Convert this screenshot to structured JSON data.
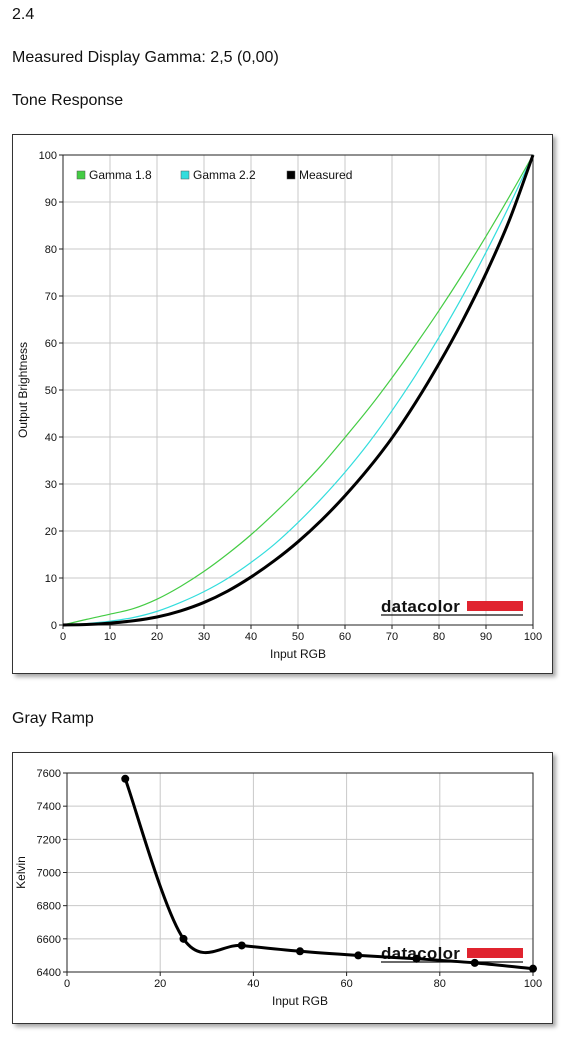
{
  "header": {
    "section_number": "2.4",
    "gamma_line": "Measured Display Gamma: 2,5 (0,00)"
  },
  "sections": {
    "tone_title": "Tone Response",
    "gray_title": "Gray Ramp"
  },
  "brand": {
    "logo_text": "datacolor",
    "logo_bar_color": "#e0242f"
  },
  "chart_data": [
    {
      "type": "line",
      "xlabel": "Input RGB",
      "ylabel": "Output Brightness",
      "xlim": [
        0,
        100
      ],
      "ylim": [
        0,
        100
      ],
      "xticks": [
        0,
        10,
        20,
        30,
        40,
        50,
        60,
        70,
        80,
        90,
        100
      ],
      "yticks": [
        0,
        10,
        20,
        30,
        40,
        50,
        60,
        70,
        80,
        90,
        100
      ],
      "grid": true,
      "legend_position": "top-left",
      "series": [
        {
          "name": "Gamma 1.8",
          "color": "#44cc44",
          "x": [
            0,
            5,
            10,
            15,
            20,
            25,
            30,
            35,
            40,
            45,
            50,
            55,
            60,
            65,
            70,
            75,
            80,
            85,
            90,
            95,
            100
          ],
          "y": [
            0,
            1.2,
            2.3,
            3.5,
            5.5,
            8.2,
            11.4,
            15.1,
            19.2,
            23.8,
            28.7,
            34.0,
            39.9,
            46.0,
            52.6,
            59.6,
            66.9,
            74.6,
            82.7,
            91.2,
            100
          ]
        },
        {
          "name": "Gamma 2.2",
          "color": "#33dddd",
          "x": [
            0,
            5,
            10,
            15,
            20,
            25,
            30,
            35,
            40,
            45,
            50,
            55,
            60,
            65,
            70,
            75,
            80,
            85,
            90,
            95,
            100
          ],
          "y": [
            0,
            0.3,
            0.8,
            1.6,
            2.9,
            4.8,
            7.1,
            9.9,
            13.3,
            17.2,
            21.8,
            26.9,
            32.5,
            38.7,
            45.6,
            53.1,
            61.2,
            69.9,
            79.3,
            89.3,
            100
          ]
        },
        {
          "name": "Measured",
          "color": "#000000",
          "x": [
            0,
            5,
            10,
            15,
            20,
            25,
            30,
            35,
            40,
            45,
            50,
            55,
            60,
            65,
            70,
            75,
            80,
            85,
            90,
            95,
            100
          ],
          "y": [
            0,
            0.1,
            0.4,
            0.9,
            1.7,
            3.0,
            4.8,
            7.2,
            10.2,
            13.7,
            17.7,
            22.3,
            27.5,
            33.3,
            39.8,
            47.3,
            55.6,
            64.7,
            74.8,
            86.2,
            100
          ]
        }
      ]
    },
    {
      "type": "line",
      "xlabel": "Input RGB",
      "ylabel": "Kelvin",
      "xlim": [
        0,
        100
      ],
      "ylim": [
        6400,
        7600
      ],
      "xticks": [
        0,
        20,
        40,
        60,
        80,
        100
      ],
      "yticks": [
        6400,
        6600,
        6800,
        7000,
        7200,
        7400,
        7600
      ],
      "grid": true,
      "series": [
        {
          "color": "#000000",
          "x": [
            12.5,
            25,
            37.5,
            50,
            62.5,
            75,
            87.5,
            100
          ],
          "y": [
            7565,
            6600,
            6560,
            6525,
            6500,
            6480,
            6455,
            6420
          ]
        }
      ]
    }
  ]
}
